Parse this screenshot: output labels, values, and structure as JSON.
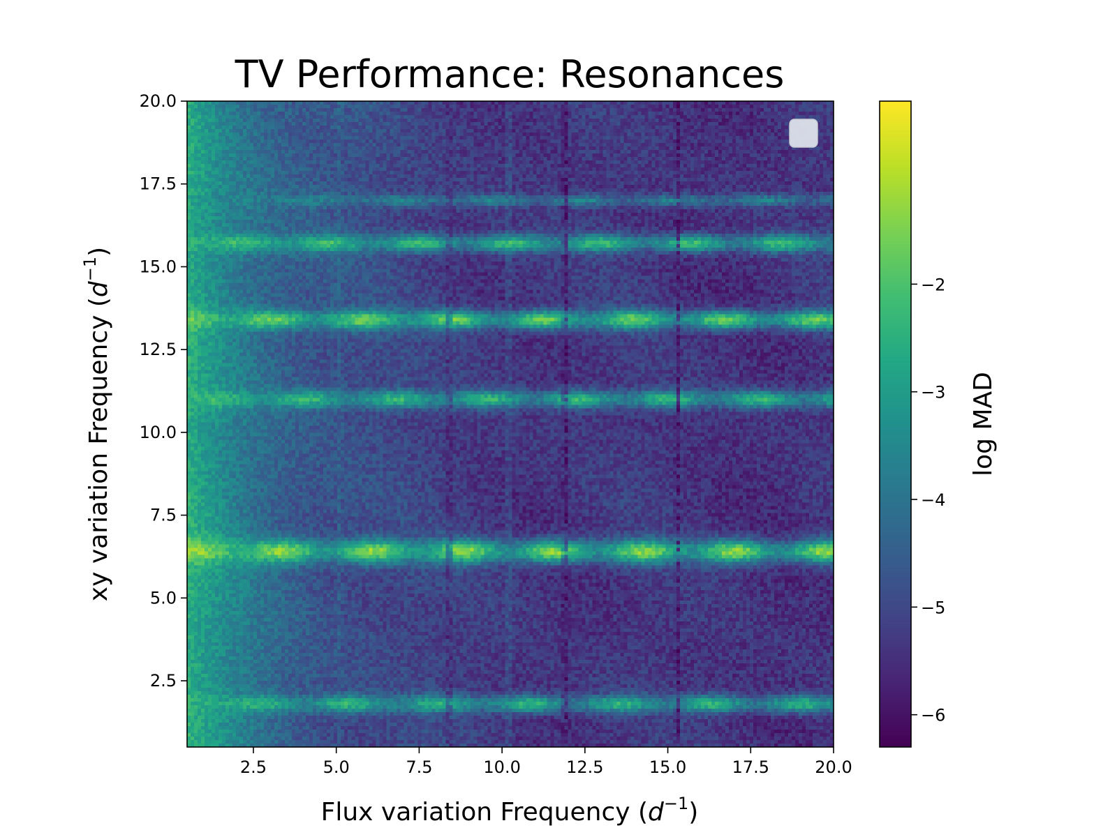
{
  "chart_data": {
    "type": "heatmap",
    "title": "TV Performance: Resonances",
    "xlabel": {
      "prefix": "Flux variation Frequency (",
      "base": "d",
      "sup": "−1",
      "suffix": ")"
    },
    "ylabel": {
      "prefix": "xy variation Frequency (",
      "base": "d",
      "sup": "−1",
      "suffix": ")"
    },
    "xlim": [
      0.5,
      20.0
    ],
    "ylim": [
      0.5,
      20.0
    ],
    "xticks": [
      2.5,
      5.0,
      7.5,
      10.0,
      12.5,
      15.0,
      17.5,
      20.0
    ],
    "xtick_labels": [
      "2.5",
      "5.0",
      "7.5",
      "10.0",
      "12.5",
      "15.0",
      "17.5",
      "20.0"
    ],
    "yticks": [
      2.5,
      5.0,
      7.5,
      10.0,
      12.5,
      15.0,
      17.5,
      20.0
    ],
    "ytick_labels": [
      "2.5",
      "5.0",
      "7.5",
      "10.0",
      "12.5",
      "15.0",
      "17.5",
      "20.0"
    ],
    "colorbar": {
      "label": "log MAD",
      "colormap": "viridis",
      "range": [
        -6.3,
        -0.3
      ],
      "ticks": [
        -2,
        -3,
        -4,
        -5,
        -6
      ],
      "tick_labels": [
        "−2",
        "−3",
        "−4",
        "−5",
        "−6"
      ]
    },
    "grid": false,
    "legend": "top-right (empty)",
    "background_level": {
      "low_freq_edge": -2.6,
      "interior_min": -5.4
    },
    "resonance_bands": [
      {
        "y": 1.8,
        "level": -2.4,
        "width": 0.12
      },
      {
        "y": 6.4,
        "level": -1.3,
        "width": 0.16
      },
      {
        "y": 11.0,
        "level": -2.3,
        "width": 0.12
      },
      {
        "y": 13.4,
        "level": -1.6,
        "width": 0.13
      },
      {
        "y": 15.7,
        "level": -2.2,
        "width": 0.12
      },
      {
        "y": 17.0,
        "level": -3.6,
        "width": 0.08
      }
    ],
    "dark_columns": [
      {
        "x": 8.4,
        "level": -5.8
      },
      {
        "x": 11.9,
        "level": -6.2
      },
      {
        "x": 15.3,
        "level": -6.1
      }
    ],
    "bright_columns": [
      {
        "x": 10.2,
        "level": -3.8
      },
      {
        "x": 5.1,
        "level": -4.0
      }
    ]
  }
}
